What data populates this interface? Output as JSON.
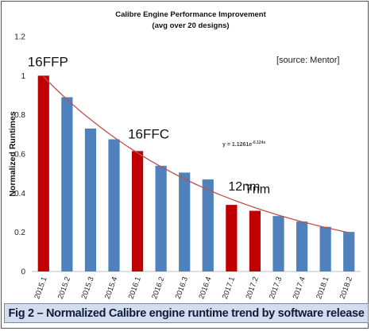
{
  "chart_data": {
    "type": "bar",
    "title": "Calibre Engine Performance Improvement",
    "subtitle": "(avg over 20 designs)",
    "ylabel": "Normalized Runtimes",
    "xlabel": "",
    "ylim": [
      0,
      1.2
    ],
    "yticks": [
      "0",
      "0.2",
      "0.4",
      "0.6",
      "0.8",
      "1",
      "1.2"
    ],
    "grid": false,
    "categories": [
      "2015.1",
      "2015.2",
      "2015.3",
      "2015.4",
      "2016.1",
      "2016.2",
      "2016.3",
      "2016.4",
      "2017.1",
      "2017.2",
      "2017.3",
      "2017.4",
      "2018.1",
      "2018.2"
    ],
    "values": [
      1.0,
      0.89,
      0.73,
      0.675,
      0.615,
      0.54,
      0.505,
      0.47,
      0.34,
      0.31,
      0.283,
      0.255,
      0.228,
      0.202
    ],
    "highlight": [
      "2015.1",
      "2016.1",
      "2017.1",
      "2017.2"
    ],
    "colors": {
      "bar": "#4f81bd",
      "highlight": "#c00000",
      "trend": "#c0504d",
      "axis": "#333333"
    },
    "trendline": {
      "equation": "y = 1.1261e",
      "exponent": "-0.124x",
      "a": 1.1261,
      "b": -0.124
    },
    "source": "[source: Mentor]",
    "annotations": [
      {
        "text": "16FFP",
        "category": "2015.1"
      },
      {
        "text": "16FFC",
        "category": "2016.1"
      },
      {
        "text": "12nm",
        "category": "2017.1"
      },
      {
        "text": "7nm",
        "category": "2017.2"
      }
    ]
  },
  "caption": "Fig 2 – Normalized Calibre engine runtime trend by software release"
}
